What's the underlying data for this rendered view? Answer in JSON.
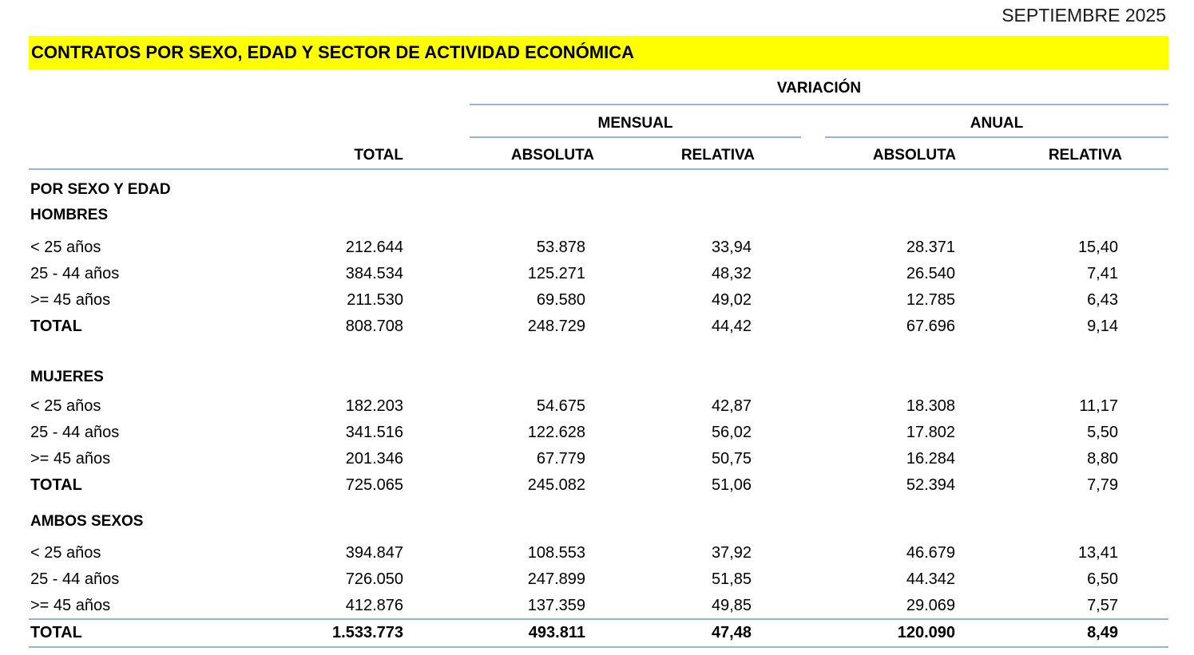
{
  "page": {
    "date_label": "SEPTIEMBRE 2025",
    "title": "CONTRATOS POR SEXO, EDAD Y SECTOR DE ACTIVIDAD ECONÓMICA"
  },
  "colors": {
    "highlight": "#ffff00",
    "rule": "#95b3d7",
    "text": "#000000"
  },
  "table": {
    "headers": {
      "total": "TOTAL",
      "variacion": "VARIACIÓN",
      "mensual": "MENSUAL",
      "anual": "ANUAL",
      "absoluta": "ABSOLUTA",
      "relativa": "RELATIVA"
    },
    "section_title": "POR SEXO Y EDAD",
    "sections": [
      {
        "name": "HOMBRES",
        "rows": [
          {
            "label": "< 25 años",
            "total": "212.644",
            "mensual_absoluta": "53.878",
            "mensual_relativa": "33,94",
            "anual_absoluta": "28.371",
            "anual_relativa": "15,40"
          },
          {
            "label": "25 - 44 años",
            "total": "384.534",
            "mensual_absoluta": "125.271",
            "mensual_relativa": "48,32",
            "anual_absoluta": "26.540",
            "anual_relativa": "7,41"
          },
          {
            "label": ">= 45 años",
            "total": "211.530",
            "mensual_absoluta": "69.580",
            "mensual_relativa": "49,02",
            "anual_absoluta": "12.785",
            "anual_relativa": "6,43"
          }
        ],
        "total_row": {
          "label": "TOTAL",
          "total": "808.708",
          "mensual_absoluta": "248.729",
          "mensual_relativa": "44,42",
          "anual_absoluta": "67.696",
          "anual_relativa": "9,14"
        }
      },
      {
        "name": "MUJERES",
        "rows": [
          {
            "label": "< 25 años",
            "total": "182.203",
            "mensual_absoluta": "54.675",
            "mensual_relativa": "42,87",
            "anual_absoluta": "18.308",
            "anual_relativa": "11,17"
          },
          {
            "label": "25 - 44 años",
            "total": "341.516",
            "mensual_absoluta": "122.628",
            "mensual_relativa": "56,02",
            "anual_absoluta": "17.802",
            "anual_relativa": "5,50"
          },
          {
            "label": ">= 45 años",
            "total": "201.346",
            "mensual_absoluta": "67.779",
            "mensual_relativa": "50,75",
            "anual_absoluta": "16.284",
            "anual_relativa": "8,80"
          }
        ],
        "total_row": {
          "label": "TOTAL",
          "total": "725.065",
          "mensual_absoluta": "245.082",
          "mensual_relativa": "51,06",
          "anual_absoluta": "52.394",
          "anual_relativa": "7,79"
        }
      },
      {
        "name": "AMBOS SEXOS",
        "rows": [
          {
            "label": "< 25 años",
            "total": "394.847",
            "mensual_absoluta": "108.553",
            "mensual_relativa": "37,92",
            "anual_absoluta": "46.679",
            "anual_relativa": "13,41"
          },
          {
            "label": "25 - 44 años",
            "total": "726.050",
            "mensual_absoluta": "247.899",
            "mensual_relativa": "51,85",
            "anual_absoluta": "44.342",
            "anual_relativa": "6,50"
          },
          {
            "label": ">= 45 años",
            "total": "412.876",
            "mensual_absoluta": "137.359",
            "mensual_relativa": "49,85",
            "anual_absoluta": "29.069",
            "anual_relativa": "7,57"
          }
        ],
        "total_row": null
      }
    ],
    "grand_total": {
      "label": "TOTAL",
      "total": "1.533.773",
      "mensual_absoluta": "493.811",
      "mensual_relativa": "47,48",
      "anual_absoluta": "120.090",
      "anual_relativa": "8,49"
    }
  }
}
